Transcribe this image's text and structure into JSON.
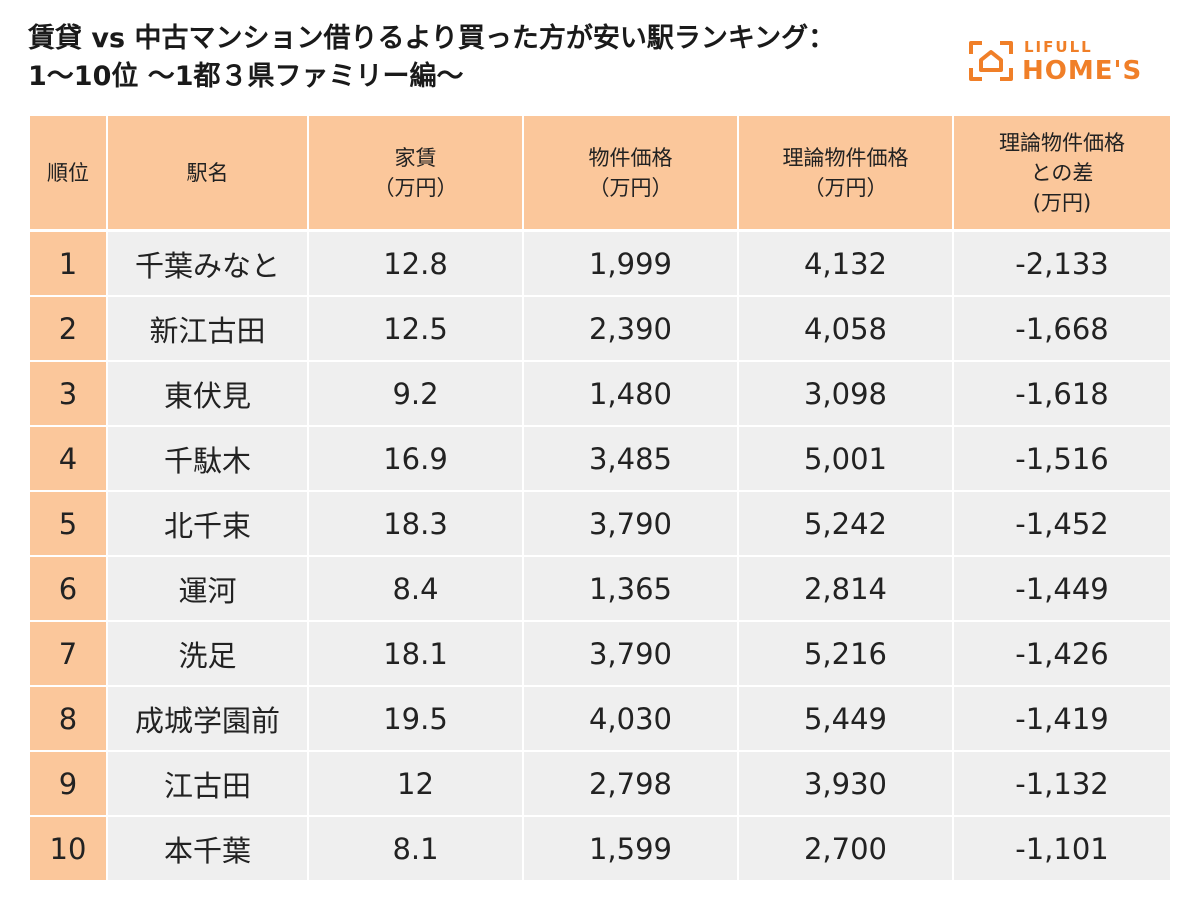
{
  "title": {
    "line1": "賃貸 vs 中古マンション借りるより買った方が安い駅ランキング：",
    "line2": "1～10位 ～1都３県ファミリー編～"
  },
  "logo": {
    "top": "LIFULL",
    "bottom": "HOME'S",
    "color": "#f07f28",
    "icon": "house-icon"
  },
  "colors": {
    "header_bg": "#fbc79b",
    "cell_bg": "#efefef"
  },
  "chart_data": {
    "type": "table",
    "columns": [
      [
        "順位"
      ],
      [
        "駅名"
      ],
      [
        "家賃",
        "（万円）"
      ],
      [
        "物件価格",
        "（万円）"
      ],
      [
        "理論物件価格",
        "（万円）"
      ],
      [
        "理論物件価格",
        "との差",
        "(万円)"
      ]
    ],
    "rows": [
      [
        "1",
        "千葉みなと",
        "12.8",
        "1,999",
        "4,132",
        "-2,133"
      ],
      [
        "2",
        "新江古田",
        "12.5",
        "2,390",
        "4,058",
        "-1,668"
      ],
      [
        "3",
        "東伏見",
        "9.2",
        "1,480",
        "3,098",
        "-1,618"
      ],
      [
        "4",
        "千駄木",
        "16.9",
        "3,485",
        "5,001",
        "-1,516"
      ],
      [
        "5",
        "北千束",
        "18.3",
        "3,790",
        "5,242",
        "-1,452"
      ],
      [
        "6",
        "運河",
        "8.4",
        "1,365",
        "2,814",
        "-1,449"
      ],
      [
        "7",
        "洗足",
        "18.1",
        "3,790",
        "5,216",
        "-1,426"
      ],
      [
        "8",
        "成城学園前",
        "19.5",
        "4,030",
        "5,449",
        "-1,419"
      ],
      [
        "9",
        "江古田",
        "12",
        "2,798",
        "3,930",
        "-1,132"
      ],
      [
        "10",
        "本千葉",
        "8.1",
        "1,599",
        "2,700",
        "-1,101"
      ]
    ]
  }
}
